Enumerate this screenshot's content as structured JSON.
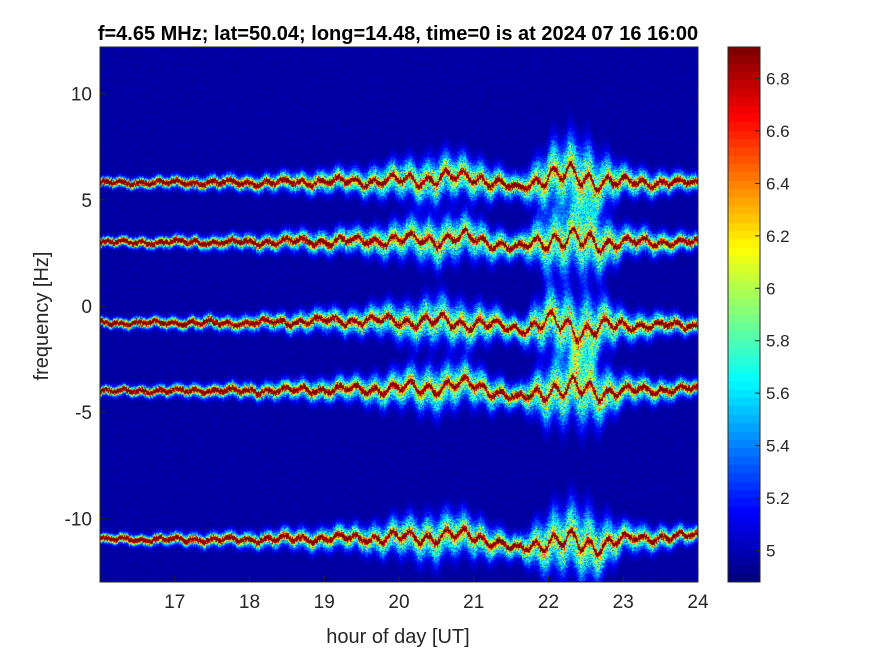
{
  "chart_data": {
    "type": "heatmap",
    "title": "f=4.65 MHz;  lat=50.04; long=14.48, time=0 is at 2024 07 16 16:00",
    "xlabel": "hour of day [UT]",
    "ylabel": "frequency [Hz]",
    "xlim": [
      16,
      24
    ],
    "ylim": [
      -13,
      12.2
    ],
    "xticks": [
      17,
      18,
      19,
      20,
      21,
      22,
      23,
      24
    ],
    "yticks": [
      -10,
      -5,
      0,
      5,
      10
    ],
    "colormap": "jet",
    "colorbar": {
      "range": [
        4.88,
        6.92
      ],
      "ticks": [
        5,
        5.2,
        5.4,
        5.6,
        5.8,
        6,
        6.2,
        6.4,
        6.6,
        6.8
      ],
      "tick_labels": [
        "5",
        "5.2",
        "5.4",
        "5.6",
        "5.8",
        "6",
        "6.2",
        "6.4",
        "6.6",
        "6.8"
      ]
    },
    "background_value": 4.95,
    "traces": [
      {
        "center_hz": 5.8,
        "mean_drift_hz": [
          [
            16,
            0
          ],
          [
            18,
            0
          ],
          [
            20,
            0.1
          ],
          [
            21,
            0.3
          ],
          [
            21.6,
            -0.3
          ],
          [
            22,
            0.4
          ],
          [
            22.5,
            0.2
          ],
          [
            23,
            0
          ],
          [
            24,
            0
          ]
        ]
      },
      {
        "center_hz": 3.0,
        "mean_drift_hz": [
          [
            16,
            0
          ],
          [
            18,
            0
          ],
          [
            20,
            0.1
          ],
          [
            21,
            0.2
          ],
          [
            21.6,
            -0.3
          ],
          [
            22,
            0.2
          ],
          [
            22.5,
            0
          ],
          [
            23,
            0
          ],
          [
            24,
            0
          ]
        ]
      },
      {
        "center_hz": -0.8,
        "mean_drift_hz": [
          [
            16,
            0
          ],
          [
            18,
            0
          ],
          [
            19,
            0.1
          ],
          [
            20,
            0.1
          ],
          [
            21,
            0
          ],
          [
            21.6,
            -0.3
          ],
          [
            22,
            0
          ],
          [
            22.5,
            -0.3
          ],
          [
            23,
            -0.1
          ],
          [
            24,
            -0.1
          ]
        ]
      },
      {
        "center_hz": -4.0,
        "mean_drift_hz": [
          [
            16,
            0
          ],
          [
            18,
            0
          ],
          [
            20,
            0.1
          ],
          [
            21,
            0.3
          ],
          [
            21.6,
            -0.4
          ],
          [
            22,
            0.1
          ],
          [
            22.5,
            0
          ],
          [
            23,
            0
          ],
          [
            24,
            0.1
          ]
        ]
      },
      {
        "center_hz": -11.0,
        "mean_drift_hz": [
          [
            16,
            0
          ],
          [
            18,
            0
          ],
          [
            20,
            0.1
          ],
          [
            21,
            0.2
          ],
          [
            21.6,
            -0.5
          ],
          [
            22,
            0
          ],
          [
            22.5,
            -0.3
          ],
          [
            23,
            0
          ],
          [
            24,
            0.2
          ]
        ]
      }
    ],
    "spread_hz": [
      [
        16,
        0.15
      ],
      [
        18,
        0.25
      ],
      [
        19.5,
        0.4
      ],
      [
        20.5,
        0.7
      ],
      [
        21,
        0.6
      ],
      [
        21.6,
        0.35
      ],
      [
        22,
        0.9
      ],
      [
        22.5,
        1.1
      ],
      [
        23,
        0.45
      ],
      [
        24,
        0.25
      ]
    ],
    "grid": false,
    "legend": "none"
  }
}
